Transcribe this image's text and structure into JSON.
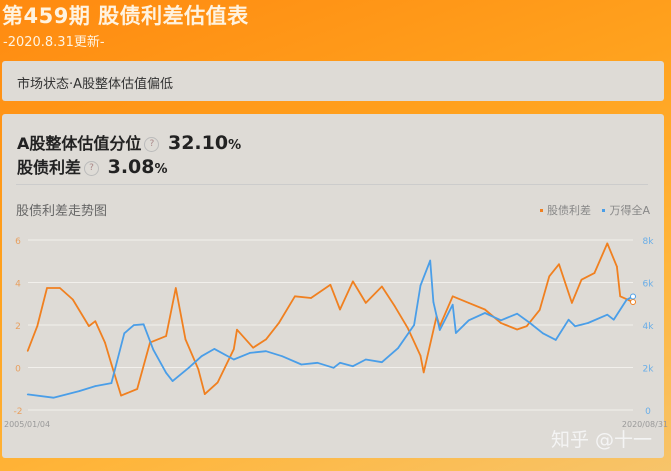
{
  "header": {
    "title": "第459期 股债利差估值表",
    "updated": "-2020.8.31更新-"
  },
  "status": {
    "text": "市场状态·A股整体估值偏低"
  },
  "metrics": [
    {
      "label": "A股整体估值分位",
      "help": "?",
      "value": "32.10",
      "unit": "%"
    },
    {
      "label": "股债利差",
      "help": "?",
      "value": "3.08",
      "unit": "%"
    }
  ],
  "watermark": "知乎 @十一",
  "chart_data": {
    "type": "line",
    "title": "股债利差走势图",
    "x_tick_labels": [
      "2005/01/04",
      "2020/08/31"
    ],
    "x_range": [
      "2005-01-04",
      "2020-08-31"
    ],
    "y_left": {
      "ticks": [
        "6",
        "4",
        "2",
        "0",
        "-2"
      ],
      "range": [
        -2,
        6
      ]
    },
    "y_right": {
      "ticks": [
        "8k",
        "6k",
        "4k",
        "2k",
        "0"
      ],
      "range": [
        0,
        8000
      ]
    },
    "grid": true,
    "legend_position": "top-right",
    "series": [
      {
        "name": "股债利差",
        "axis": "left",
        "color": "#f08020",
        "x": [
          "2005-01",
          "2005-04",
          "2005-07",
          "2005-11",
          "2006-03",
          "2006-08",
          "2006-10",
          "2007-01",
          "2007-03",
          "2007-06",
          "2007-11",
          "2008-03",
          "2008-08",
          "2008-11",
          "2009-02",
          "2009-06",
          "2009-08",
          "2009-12",
          "2010-05",
          "2010-06",
          "2010-11",
          "2011-03",
          "2011-07",
          "2011-12",
          "2012-05",
          "2012-11",
          "2013-02",
          "2013-06",
          "2013-10",
          "2014-03",
          "2014-07",
          "2014-11",
          "2015-03",
          "2015-04",
          "2015-08",
          "2015-09",
          "2016-01",
          "2016-06",
          "2016-11",
          "2017-04",
          "2017-09",
          "2017-12",
          "2018-04",
          "2018-07",
          "2018-10",
          "2019-02",
          "2019-05",
          "2019-09",
          "2020-01",
          "2020-04",
          "2020-05",
          "2020-08-31"
        ],
        "values": [
          0.78,
          1.95,
          3.74,
          3.74,
          3.2,
          1.95,
          2.18,
          1.17,
          0.16,
          -1.32,
          -1.01,
          1.17,
          1.48,
          3.74,
          1.32,
          -0.08,
          -1.25,
          -0.7,
          0.86,
          1.78,
          0.93,
          1.32,
          2.09,
          3.35,
          3.27,
          3.89,
          2.73,
          4.05,
          3.04,
          3.81,
          2.88,
          1.87,
          0.55,
          -0.23,
          2.41,
          1.95,
          3.35,
          3.04,
          2.73,
          2.09,
          1.79,
          1.95,
          2.71,
          4.29,
          4.86,
          3.04,
          4.13,
          4.44,
          5.84,
          4.75,
          3.35,
          3.08
        ]
      },
      {
        "name": "万得全A",
        "axis": "right",
        "color": "#4a9ee8",
        "x": [
          "2005-01",
          "2005-09",
          "2006-05",
          "2006-10",
          "2007-03",
          "2007-07",
          "2007-10",
          "2008-01",
          "2008-04",
          "2008-08",
          "2008-10",
          "2009-03",
          "2009-07",
          "2009-11",
          "2010-05",
          "2010-10",
          "2011-03",
          "2011-08",
          "2012-02",
          "2012-07",
          "2012-12",
          "2013-02",
          "2013-06",
          "2013-10",
          "2014-03",
          "2014-08",
          "2015-01",
          "2015-03",
          "2015-06",
          "2015-07",
          "2015-09",
          "2016-01",
          "2016-02",
          "2016-06",
          "2016-11",
          "2017-04",
          "2017-09",
          "2018-01",
          "2018-05",
          "2018-09",
          "2019-01",
          "2019-03",
          "2019-07",
          "2020-01",
          "2020-03",
          "2020-07",
          "2020-08-31"
        ],
        "values": [
          734,
          578,
          890,
          1125,
          1266,
          3608,
          3994,
          4031,
          2838,
          1750,
          1359,
          1984,
          2531,
          2875,
          2375,
          2688,
          2766,
          2531,
          2141,
          2219,
          1984,
          2219,
          2063,
          2375,
          2250,
          2906,
          4000,
          5859,
          7031,
          5078,
          3766,
          4953,
          3625,
          4219,
          4563,
          4219,
          4531,
          4094,
          3609,
          3297,
          4250,
          3938,
          4094,
          4484,
          4250,
          5188,
          5344
        ]
      }
    ]
  }
}
